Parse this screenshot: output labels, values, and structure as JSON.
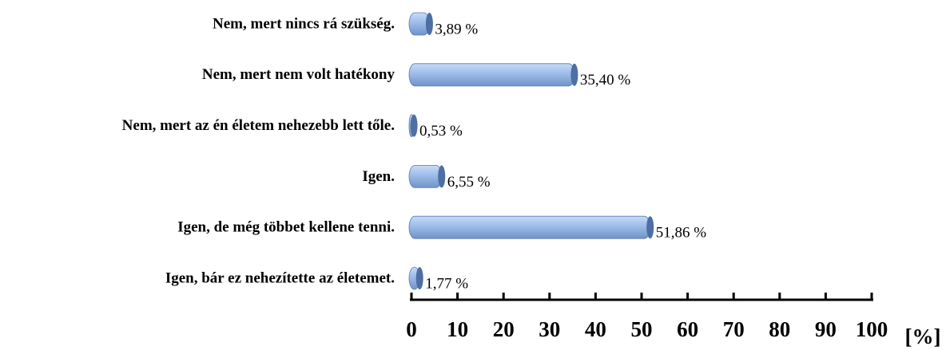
{
  "chart_data": {
    "type": "bar",
    "orientation": "horizontal",
    "categories": [
      "Nem, mert nincs rá szükség.",
      "Nem, mert nem volt hatékony",
      "Nem, mert az én életem nehezebb lett tőle.",
      "Igen.",
      "Igen, de még többet kellene tenni.",
      "Igen, bár ez nehezítette az életemet."
    ],
    "values": [
      3.89,
      35.4,
      0.53,
      6.55,
      51.86,
      1.77
    ],
    "value_labels": [
      "3,89 %",
      "35,40 %",
      "0,53 %",
      "6,55 %",
      "51,86 %",
      "1,77 %"
    ],
    "color": "#95b6e6",
    "x_label": "[%]",
    "xlim": [
      0,
      100
    ],
    "xticks": [
      0,
      10,
      20,
      30,
      40,
      50,
      60,
      70,
      80,
      90,
      100
    ]
  }
}
